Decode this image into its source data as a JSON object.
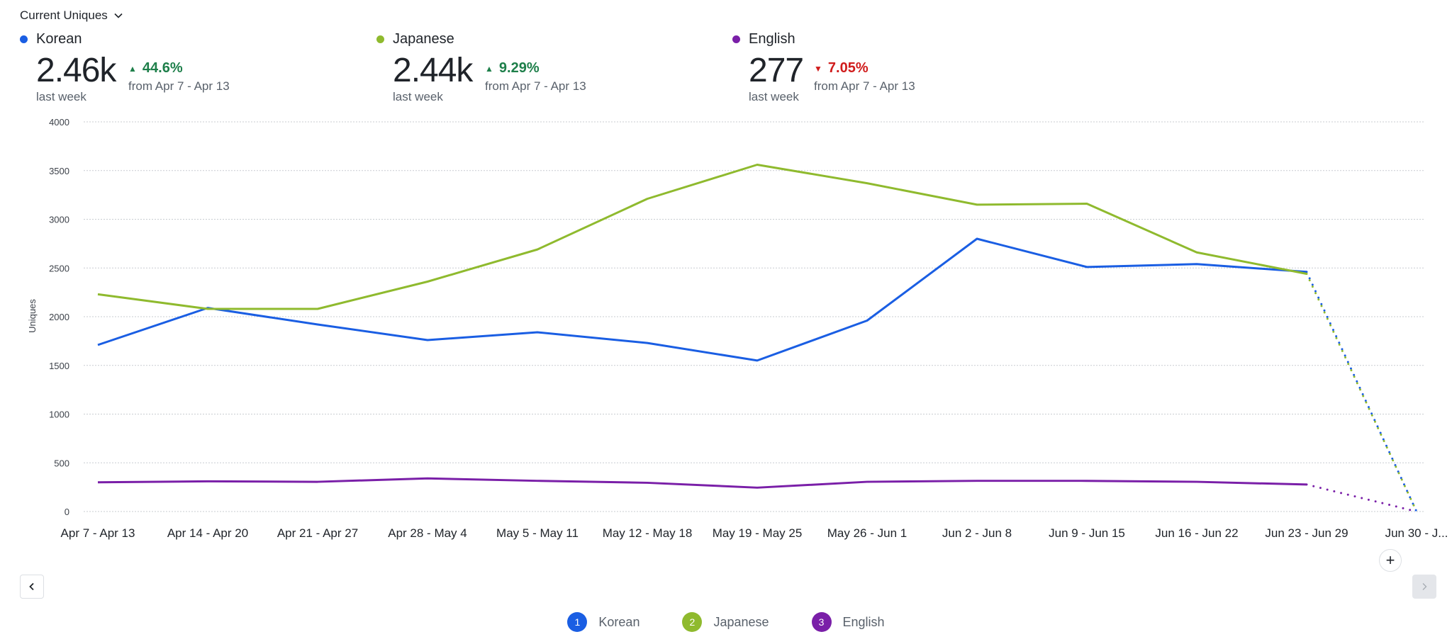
{
  "header": {
    "metric_label": "Current Uniques"
  },
  "cards": [
    {
      "name": "Korean",
      "color": "#1a5ee3",
      "value": "2.46k",
      "value_label": "last week",
      "delta": "44.6%",
      "direction": "up",
      "delta_label": "from Apr 7 - Apr 13"
    },
    {
      "name": "Japanese",
      "color": "#8fba2e",
      "value": "2.44k",
      "value_label": "last week",
      "delta": "9.29%",
      "direction": "up",
      "delta_label": "from Apr 7 - Apr 13"
    },
    {
      "name": "English",
      "color": "#7a1fa8",
      "value": "277",
      "value_label": "last week",
      "delta": "7.05%",
      "direction": "down",
      "delta_label": "from Apr 7 - Apr 13"
    }
  ],
  "controls": {
    "prev_icon": "chevron-left-icon",
    "next_icon": "chevron-right-icon",
    "add_icon": "plus-icon",
    "add_symbol": "+"
  },
  "legend": [
    {
      "index": "1",
      "label": "Korean",
      "color": "#1a5ee3"
    },
    {
      "index": "2",
      "label": "Japanese",
      "color": "#8fba2e"
    },
    {
      "index": "3",
      "label": "English",
      "color": "#7a1fa8"
    }
  ],
  "chart_data": {
    "type": "line",
    "title": "",
    "xlabel": "",
    "ylabel": "Uniques",
    "ylim": [
      0,
      4000
    ],
    "yticks": [
      0,
      500,
      1000,
      1500,
      2000,
      2500,
      3000,
      3500,
      4000
    ],
    "grid": true,
    "categories": [
      "Apr 7 - Apr 13",
      "Apr 14 - Apr 20",
      "Apr 21 - Apr 27",
      "Apr 28 - May 4",
      "May 5 - May 11",
      "May 12 - May 18",
      "May 19 - May 25",
      "May 26 - Jun 1",
      "Jun 2 - Jun 8",
      "Jun 9 - Jun 15",
      "Jun 16 - Jun 22",
      "Jun 23 - Jun 29",
      "Jun 30 - J..."
    ],
    "incomplete_last_period": true,
    "series": [
      {
        "name": "Korean",
        "color": "#1a5ee3",
        "values": [
          1710,
          2090,
          1920,
          1760,
          1840,
          1730,
          1550,
          1960,
          2800,
          2510,
          2540,
          2460,
          0
        ]
      },
      {
        "name": "Japanese",
        "color": "#8fba2e",
        "values": [
          2230,
          2080,
          2080,
          2360,
          2690,
          3210,
          3560,
          3370,
          3150,
          3160,
          2660,
          2440,
          0
        ]
      },
      {
        "name": "English",
        "color": "#7a1fa8",
        "values": [
          300,
          310,
          305,
          340,
          315,
          295,
          245,
          305,
          315,
          315,
          305,
          277,
          0
        ]
      }
    ],
    "legend_position": "bottom-center"
  }
}
